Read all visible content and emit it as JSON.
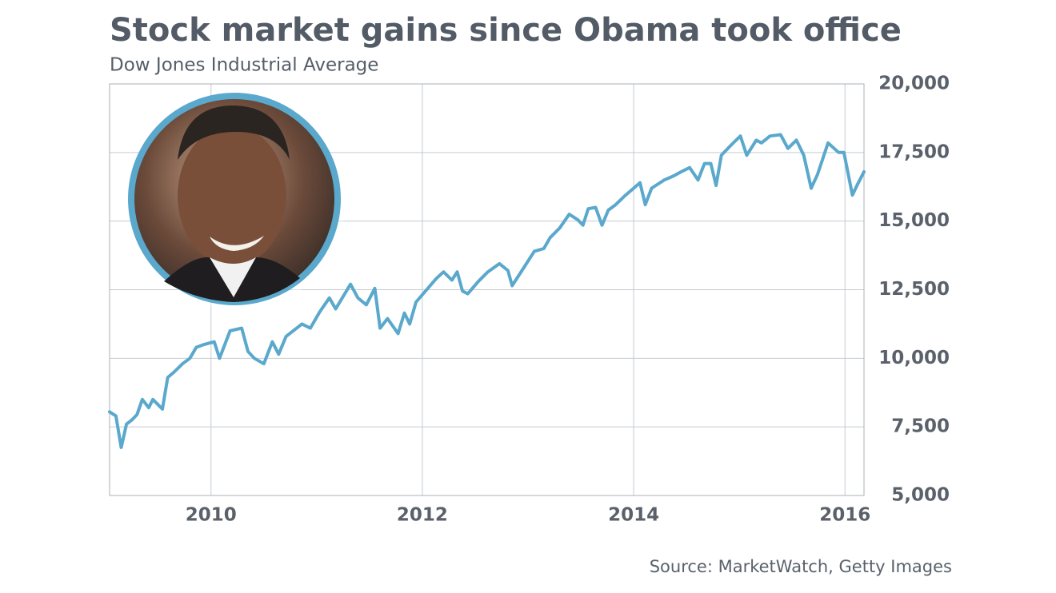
{
  "chart_data": {
    "type": "line",
    "title": "Stock market gains since Obama took office",
    "subtitle": "Dow Jones Industrial Average",
    "source": "Source: MarketWatch, Getty Images",
    "color": "#5aa8cc",
    "grid": true,
    "x": [
      2009.04,
      2009.1,
      2009.15,
      2009.2,
      2009.25,
      2009.3,
      2009.35,
      2009.41,
      2009.45,
      2009.54,
      2009.59,
      2009.65,
      2009.73,
      2009.8,
      2009.86,
      2009.93,
      2010.03,
      2010.08,
      2010.18,
      2010.29,
      2010.35,
      2010.41,
      2010.5,
      2010.58,
      2010.64,
      2010.71,
      2010.86,
      2010.94,
      2011.03,
      2011.12,
      2011.18,
      2011.32,
      2011.39,
      2011.47,
      2011.55,
      2011.6,
      2011.67,
      2011.77,
      2011.83,
      2011.88,
      2011.94,
      2012.13,
      2012.2,
      2012.28,
      2012.33,
      2012.38,
      2012.43,
      2012.53,
      2012.62,
      2012.73,
      2012.81,
      2012.85,
      2012.96,
      2013.06,
      2013.15,
      2013.21,
      2013.3,
      2013.39,
      2013.47,
      2013.52,
      2013.57,
      2013.64,
      2013.7,
      2013.76,
      2013.83,
      2013.91,
      2014.0,
      2014.06,
      2014.11,
      2014.17,
      2014.29,
      2014.38,
      2014.45,
      2014.53,
      2014.61,
      2014.67,
      2014.73,
      2014.78,
      2014.83,
      2014.93,
      2015.01,
      2015.07,
      2015.16,
      2015.21,
      2015.29,
      2015.39,
      2015.46,
      2015.54,
      2015.61,
      2015.68,
      2015.74,
      2015.84,
      2015.94,
      2015.99,
      2016.07,
      2016.12,
      2016.18
    ],
    "values": [
      8050,
      7900,
      6750,
      7600,
      7750,
      7950,
      8500,
      8200,
      8500,
      8150,
      9300,
      9500,
      9800,
      10000,
      10400,
      10500,
      10600,
      10000,
      11000,
      11100,
      10250,
      10000,
      9800,
      10600,
      10150,
      10800,
      11250,
      11100,
      11700,
      12200,
      11800,
      12700,
      12200,
      11950,
      12550,
      11100,
      11450,
      10900,
      11650,
      11250,
      12050,
      12900,
      13150,
      12850,
      13150,
      12450,
      12350,
      12800,
      13150,
      13450,
      13200,
      12650,
      13300,
      13900,
      14000,
      14400,
      14750,
      15250,
      15050,
      14850,
      15450,
      15500,
      14850,
      15400,
      15600,
      15900,
      16200,
      16400,
      15600,
      16200,
      16500,
      16650,
      16800,
      16950,
      16500,
      17100,
      17100,
      16300,
      17400,
      17800,
      18100,
      17400,
      17950,
      17850,
      18100,
      18150,
      17650,
      17950,
      17400,
      16200,
      16700,
      17850,
      17500,
      17500,
      15950,
      16350,
      16800
    ],
    "xlim": [
      2009.04,
      2016.18
    ],
    "xticks": [
      2010,
      2012,
      2014,
      2016
    ],
    "ylim": [
      5000,
      20000
    ],
    "yticks": [
      {
        "value": 5000,
        "label": "5,000"
      },
      {
        "value": 7500,
        "label": "7,500"
      },
      {
        "value": 10000,
        "label": "10,000"
      },
      {
        "value": 12500,
        "label": "12,500"
      },
      {
        "value": 15000,
        "label": "15,000"
      },
      {
        "value": 17500,
        "label": "17,500"
      },
      {
        "value": 20000,
        "label": "20,000"
      }
    ]
  }
}
